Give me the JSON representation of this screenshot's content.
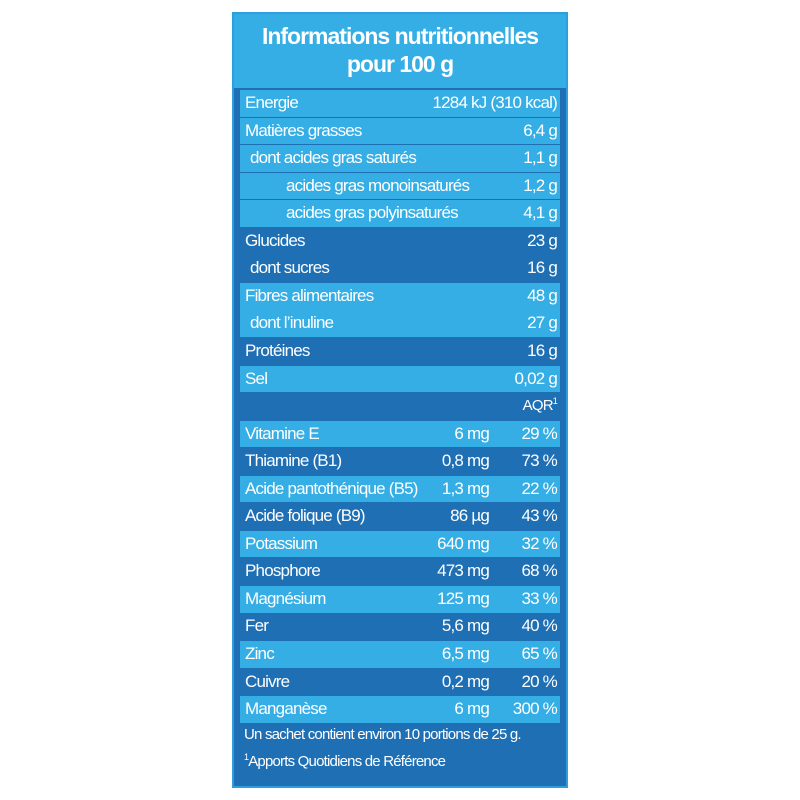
{
  "title_line1": "Informations nutritionnelles",
  "title_line2": "pour 100 g",
  "energy": {
    "label": "Energie",
    "value": "1284 kJ (310 kcal)"
  },
  "nutrients": [
    {
      "label": "Matières grasses",
      "value": "6,4 g",
      "indent": 0
    },
    {
      "label": "dont acides gras saturés",
      "value": "1,1 g",
      "indent": 1
    },
    {
      "label": "acides gras monoinsaturés",
      "value": "1,2 g",
      "indent": 2
    },
    {
      "label": "acides gras polyinsaturés",
      "value": "4,1 g",
      "indent": 2
    },
    {
      "label": "Glucides",
      "value": "23 g",
      "indent": 0
    },
    {
      "label": "dont sucres",
      "value": "16 g",
      "indent": 1
    },
    {
      "label": "Fibres alimentaires",
      "value": "48 g",
      "indent": 0
    },
    {
      "label": "dont l’inuline",
      "value": "27 g",
      "indent": 1
    },
    {
      "label": "Protéines",
      "value": "16 g",
      "indent": 0
    },
    {
      "label": "Sel",
      "value": "0,02 g",
      "indent": 0
    }
  ],
  "aqr_label": "AQR",
  "aqr_sup": "1",
  "micronutrients": [
    {
      "label": "Vitamine E",
      "amount": "6 mg",
      "percent": "29 %"
    },
    {
      "label": "Thiamine (B1)",
      "amount": "0,8 mg",
      "percent": "73 %"
    },
    {
      "label": "Acide pantothénique (B5)",
      "amount": "1,3 mg",
      "percent": "22 %"
    },
    {
      "label": "Acide folique (B9)",
      "amount": "86 µg",
      "percent": "43 %"
    },
    {
      "label": "Potassium",
      "amount": "640 mg",
      "percent": "32 %"
    },
    {
      "label": "Phosphore",
      "amount": "473 mg",
      "percent": "68 %"
    },
    {
      "label": "Magnésium",
      "amount": "125 mg",
      "percent": "33 %"
    },
    {
      "label": "Fer",
      "amount": "5,6 mg",
      "percent": "40 %"
    },
    {
      "label": "Zinc",
      "amount": "6,5 mg",
      "percent": "65 %"
    },
    {
      "label": "Cuivre",
      "amount": "0,2 mg",
      "percent": "20 %"
    },
    {
      "label": "Manganèse",
      "amount": "6 mg",
      "percent": "300 %"
    }
  ],
  "footer_note": "Un sachet contient environ 10 portions de 25 g.",
  "footnote_mark": "1",
  "footnote_text": "Apports Quotidiens de Référence",
  "colors": {
    "dark": "#1f6fb5",
    "light": "#35aee6",
    "text": "#ffffff"
  }
}
